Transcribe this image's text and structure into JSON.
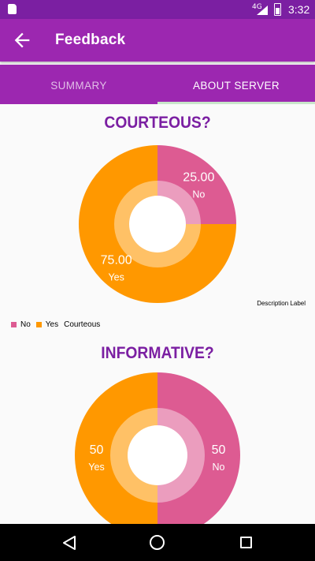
{
  "status_bar": {
    "time": "3:32",
    "network": "4G"
  },
  "app_bar": {
    "title": "Feedback"
  },
  "tabs": [
    {
      "label": "SUMMARY",
      "selected": false
    },
    {
      "label": "ABOUT SERVER",
      "selected": true
    }
  ],
  "colors": {
    "primary": "#9c27b0",
    "primary_dark": "#7b1fa2",
    "yes": "#ff9800",
    "no": "#dd5b92",
    "title": "#7b1fa2"
  },
  "chart_data": [
    {
      "type": "pie",
      "title": "COURTEOUS?",
      "description": "Description Label",
      "series_label": "Courteous",
      "slices": [
        {
          "label": "No",
          "value": 25.0,
          "value_text": "25.00",
          "color": "#dd5b92"
        },
        {
          "label": "Yes",
          "value": 75.0,
          "value_text": "75.00",
          "color": "#ff9800"
        }
      ],
      "legend": [
        {
          "label": "No",
          "color": "#dd5b92"
        },
        {
          "label": "Yes",
          "color": "#ff9800"
        }
      ]
    },
    {
      "type": "pie",
      "title": "INFORMATIVE?",
      "slices": [
        {
          "label": "No",
          "value": 50,
          "value_text": "50",
          "color": "#dd5b92"
        },
        {
          "label": "Yes",
          "value": 50,
          "value_text": "50",
          "color": "#ff9800"
        }
      ]
    }
  ]
}
